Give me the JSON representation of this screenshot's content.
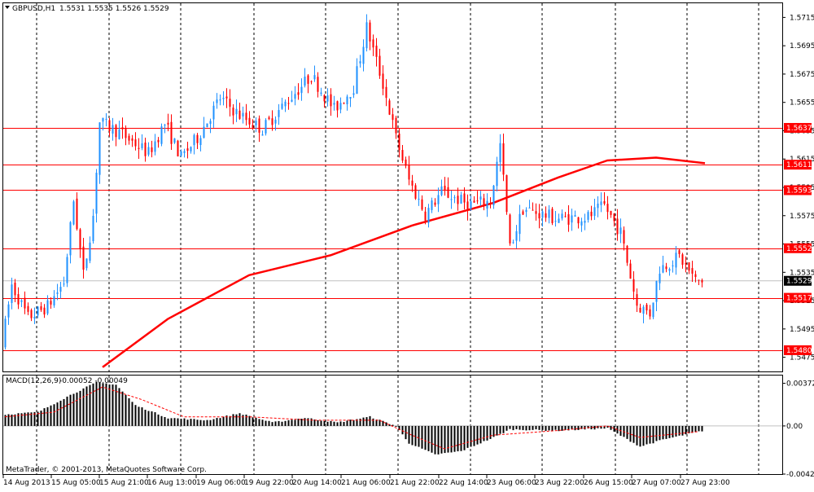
{
  "window": {
    "title": "GBPUSD,H1",
    "ohlc": "1.5531 1.5535 1.5526 1.5529"
  },
  "copyright": "MetaTrader, © 2001-2013, MetaQuotes Software Corp.",
  "colors": {
    "bull": "#1e90ff",
    "bear": "#ff0000",
    "ma": "#ff0000",
    "level": "#ff0000",
    "macd": "#000000",
    "signal": "#ff0000",
    "grid": "#000000",
    "current_price_tag": "#000000"
  },
  "chart_data": [
    {
      "type": "candlestick",
      "symbol": "GBPUSD",
      "timeframe": "H1",
      "ylim": [
        1.5465,
        1.5725
      ],
      "y_ticks": [
        "1.5715",
        "1.5695",
        "1.5675",
        "1.5655",
        "1.5635",
        "1.5615",
        "1.5595",
        "1.5575",
        "1.5555",
        "1.5535",
        "1.5515",
        "1.5495",
        "1.5475"
      ],
      "x_ticks": [
        "14 Aug 2013",
        "15 Aug 05:00",
        "15 Aug 21:00",
        "16 Aug 13:00",
        "19 Aug 06:00",
        "19 Aug 22:00",
        "20 Aug 14:00",
        "21 Aug 06:00",
        "21 Aug 22:00",
        "22 Aug 14:00",
        "23 Aug 06:00",
        "23 Aug 22:00",
        "26 Aug 15:00",
        "27 Aug 07:00",
        "27 Aug 23:00"
      ],
      "horizontal_levels": [
        "1.5637",
        "1.5611",
        "1.5593",
        "1.5552",
        "1.5517",
        "1.5480"
      ],
      "current_price": "1.5529",
      "anchors": [
        [
          0,
          1.5484
        ],
        [
          3,
          1.5526
        ],
        [
          8,
          1.5503
        ],
        [
          14,
          1.5511
        ],
        [
          19,
          1.5528
        ],
        [
          22,
          1.5586
        ],
        [
          25,
          1.5533
        ],
        [
          28,
          1.5575
        ],
        [
          30,
          1.5641
        ],
        [
          36,
          1.5634
        ],
        [
          45,
          1.5619
        ],
        [
          50,
          1.564
        ],
        [
          55,
          1.5616
        ],
        [
          60,
          1.563
        ],
        [
          67,
          1.5658
        ],
        [
          73,
          1.5646
        ],
        [
          80,
          1.5636
        ],
        [
          88,
          1.5657
        ],
        [
          95,
          1.5674
        ],
        [
          102,
          1.565
        ],
        [
          108,
          1.5666
        ],
        [
          112,
          1.5708
        ],
        [
          117,
          1.5668
        ],
        [
          121,
          1.563
        ],
        [
          125,
          1.56
        ],
        [
          130,
          1.5576
        ],
        [
          135,
          1.5592
        ],
        [
          143,
          1.5583
        ],
        [
          150,
          1.5585
        ],
        [
          153,
          1.5625
        ],
        [
          156,
          1.5552
        ],
        [
          160,
          1.558
        ],
        [
          170,
          1.5573
        ],
        [
          180,
          1.5574
        ],
        [
          185,
          1.5582
        ],
        [
          190,
          1.5563
        ],
        [
          195,
          1.5512
        ],
        [
          199,
          1.5506
        ],
        [
          202,
          1.5538
        ],
        [
          208,
          1.5546
        ],
        [
          213,
          1.5529
        ]
      ],
      "moving_average": [
        [
          30,
          1.5468
        ],
        [
          50,
          1.5502
        ],
        [
          75,
          1.5533
        ],
        [
          100,
          1.5547
        ],
        [
          125,
          1.5568
        ],
        [
          150,
          1.5584
        ],
        [
          170,
          1.5602
        ],
        [
          185,
          1.5614
        ],
        [
          200,
          1.5616
        ],
        [
          215,
          1.5612
        ]
      ]
    },
    {
      "type": "histogram",
      "name": "MACD(12,26,9)",
      "values_label": "-0.00052 -0.00049",
      "ylim": [
        -0.0042,
        0.0044
      ],
      "y_ticks": [
        "0.00372",
        "0.00",
        "-0.00420"
      ],
      "anchors": [
        [
          0,
          0.001
        ],
        [
          10,
          0.0012
        ],
        [
          20,
          0.0027
        ],
        [
          28,
          0.0038
        ],
        [
          34,
          0.0036
        ],
        [
          40,
          0.0018
        ],
        [
          50,
          0.0007
        ],
        [
          62,
          0.0005
        ],
        [
          72,
          0.0011
        ],
        [
          82,
          0.0003
        ],
        [
          92,
          0.0007
        ],
        [
          102,
          0.0003
        ],
        [
          112,
          0.0008
        ],
        [
          120,
          0.0
        ],
        [
          124,
          -0.0015
        ],
        [
          132,
          -0.0025
        ],
        [
          140,
          -0.0022
        ],
        [
          150,
          -0.001
        ],
        [
          155,
          -0.0003
        ],
        [
          170,
          -0.0004
        ],
        [
          185,
          -0.0002
        ],
        [
          195,
          -0.0018
        ],
        [
          202,
          -0.0012
        ],
        [
          213,
          -0.0005
        ]
      ],
      "signal_anchors": [
        [
          0,
          0.0008
        ],
        [
          15,
          0.0012
        ],
        [
          30,
          0.0034
        ],
        [
          42,
          0.0023
        ],
        [
          55,
          0.0008
        ],
        [
          75,
          0.0008
        ],
        [
          95,
          0.0005
        ],
        [
          115,
          0.0005
        ],
        [
          125,
          -0.0008
        ],
        [
          135,
          -0.002
        ],
        [
          150,
          -0.0008
        ],
        [
          170,
          -0.0004
        ],
        [
          185,
          0.0
        ],
        [
          195,
          -0.001
        ],
        [
          213,
          -0.0005
        ]
      ]
    }
  ]
}
